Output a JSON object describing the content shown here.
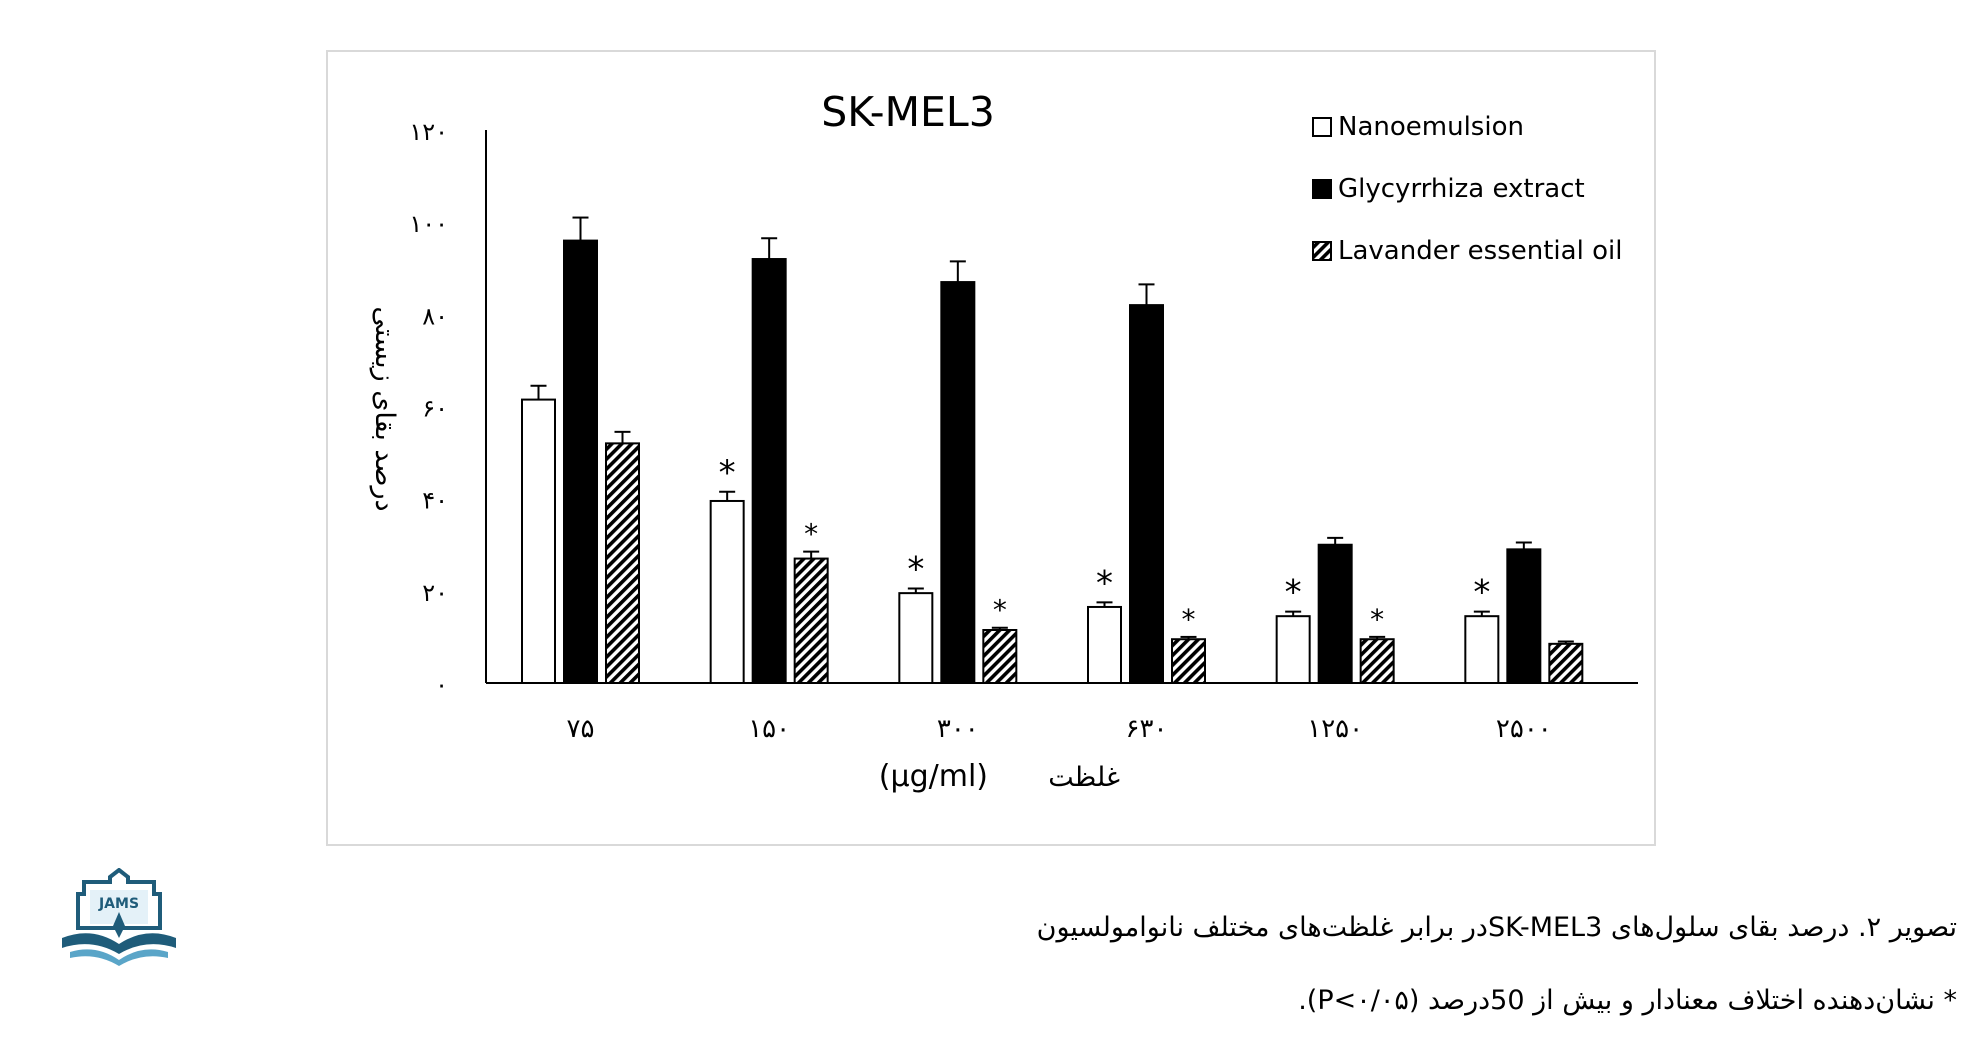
{
  "chart_data": {
    "type": "bar",
    "title": "SK-MEL3",
    "ylabel": "درصد بقای زیستی",
    "xlabel_unit": "(μg/ml)",
    "xlabel_word": "غلظت",
    "ylim": [
      0,
      120
    ],
    "y_ticks": [
      {
        "value": 0,
        "label": "۰"
      },
      {
        "value": 20,
        "label": "۲۰"
      },
      {
        "value": 40,
        "label": "۴۰"
      },
      {
        "value": 60,
        "label": "۶۰"
      },
      {
        "value": 80,
        "label": "۸۰"
      },
      {
        "value": 100,
        "label": "۱۰۰"
      },
      {
        "value": 120,
        "label": "۱۲۰"
      }
    ],
    "categories": [
      "۷۵",
      "۱۵۰",
      "۳۰۰",
      "۶۳۰",
      "۱۲۵۰",
      "۲۵۰۰"
    ],
    "series": [
      {
        "name": "Nanoemulsion",
        "fill": "white",
        "values": [
          61.5,
          39.5,
          19.5,
          16.5,
          14.5,
          14.5
        ],
        "errors": [
          3,
          2,
          1,
          1,
          1,
          1
        ],
        "significant": [
          false,
          true,
          true,
          true,
          true,
          true
        ]
      },
      {
        "name": "Glycyrrhiza extract",
        "fill": "black",
        "values": [
          96,
          92,
          87,
          82,
          30,
          29
        ],
        "errors": [
          5,
          4.5,
          4.5,
          4.5,
          1.5,
          1.5
        ],
        "significant": [
          false,
          false,
          false,
          false,
          false,
          false
        ]
      },
      {
        "name": "Lavander essential oil",
        "fill": "hatched",
        "values": [
          52,
          27,
          11.5,
          9.5,
          9.5,
          8.5
        ],
        "errors": [
          2.5,
          1.5,
          0.5,
          0.5,
          0.5,
          0.5
        ],
        "significant": [
          false,
          true,
          true,
          true,
          true,
          false
        ]
      }
    ],
    "significance_marker": "*",
    "legend_position": "top-right",
    "grid": false
  },
  "caption": {
    "line1": "تصویر ۲. درصد بقای سلول‌های SK-MEL3در برابر غلظت‌های مختلف نانوامولسیون",
    "line2": "* نشان‌دهنده اختلاف معنادار و بیش از 50درصد (P<۰/۰۵)."
  },
  "logo": {
    "text": "JAMS",
    "colors": {
      "dark": "#1f5c7a",
      "light": "#5aa5c8"
    }
  }
}
